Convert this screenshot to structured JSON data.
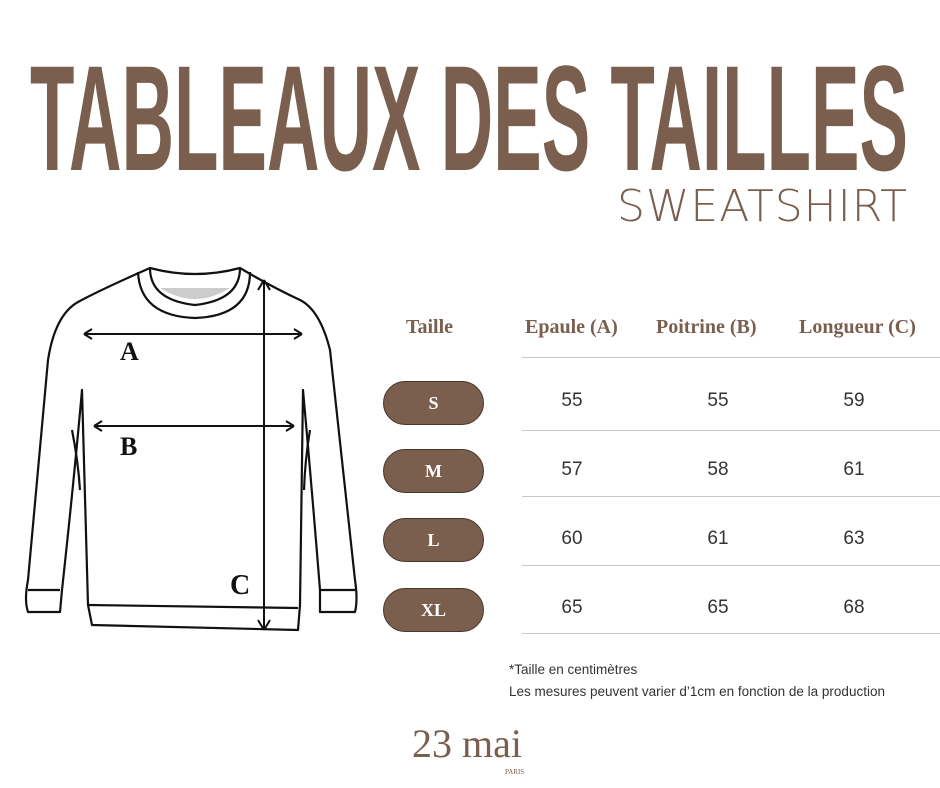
{
  "header": {
    "title": "TABLEAUX DES TAILLES",
    "subtitle": "SWEATSHIRT"
  },
  "diagram": {
    "labels": {
      "a": "A",
      "b": "B",
      "c": "C"
    }
  },
  "table": {
    "headers": [
      "Taille",
      "Epaule (A)",
      "Poitrine (B)",
      "Longueur (C)"
    ],
    "rows": [
      {
        "size": "S",
        "epaule": "55",
        "poitrine": "55",
        "longueur": "59"
      },
      {
        "size": "M",
        "epaule": "57",
        "poitrine": "58",
        "longueur": "61"
      },
      {
        "size": "L",
        "epaule": "60",
        "poitrine": "61",
        "longueur": "63"
      },
      {
        "size": "XL",
        "epaule": "65",
        "poitrine": "65",
        "longueur": "68"
      }
    ]
  },
  "notes": {
    "unit": "*Taille en centimètres",
    "variance": "Les mesures peuvent varier d’1cm en fonction de la production"
  },
  "brand": {
    "name": "23 mai",
    "city": "PARIS"
  },
  "colors": {
    "accent": "#7a5e4e"
  }
}
